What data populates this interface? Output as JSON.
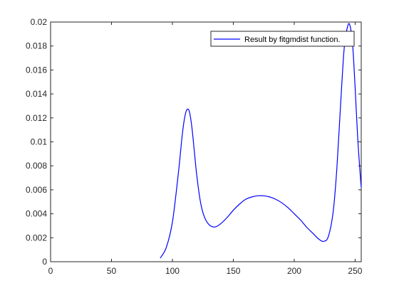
{
  "chart_data": {
    "type": "line",
    "title": "",
    "xlabel": "",
    "ylabel": "",
    "xlim": [
      0,
      255
    ],
    "ylim": [
      0,
      0.02
    ],
    "xticks": [
      0,
      50,
      100,
      150,
      200,
      250
    ],
    "xtick_labels": [
      "0",
      "50",
      "100",
      "150",
      "200",
      "250"
    ],
    "yticks": [
      0,
      0.002,
      0.004,
      0.006,
      0.008,
      0.01,
      0.012,
      0.014,
      0.016,
      0.018,
      0.02
    ],
    "ytick_labels": [
      "0",
      "0.002",
      "0.004",
      "0.006",
      "0.008",
      "0.01",
      "0.012",
      "0.014",
      "0.016",
      "0.018",
      "0.02"
    ],
    "grid": false,
    "legend_position": "top-right",
    "series": [
      {
        "name": "Result by fitgmdist function.",
        "color": "#0000ff",
        "x": [
          90,
          95,
          100,
          105,
          108,
          110,
          112,
          114,
          116,
          118,
          120,
          123,
          126,
          130,
          135,
          140,
          145,
          150,
          155,
          160,
          165,
          170,
          175,
          180,
          185,
          190,
          195,
          200,
          205,
          210,
          215,
          220,
          224,
          228,
          232,
          235,
          238,
          241,
          244,
          246,
          248,
          250,
          252,
          254,
          255
        ],
        "y": [
          0.0003,
          0.0012,
          0.0033,
          0.0075,
          0.0105,
          0.012,
          0.0127,
          0.0125,
          0.0112,
          0.0092,
          0.0072,
          0.005,
          0.0038,
          0.0031,
          0.0029,
          0.0032,
          0.0037,
          0.0043,
          0.0048,
          0.0052,
          0.0054,
          0.0055,
          0.0055,
          0.0054,
          0.0052,
          0.0049,
          0.0045,
          0.004,
          0.0035,
          0.0029,
          0.0024,
          0.0019,
          0.0017,
          0.0021,
          0.0042,
          0.0078,
          0.013,
          0.0178,
          0.0197,
          0.0196,
          0.018,
          0.0145,
          0.0105,
          0.0075,
          0.0062
        ]
      }
    ]
  }
}
